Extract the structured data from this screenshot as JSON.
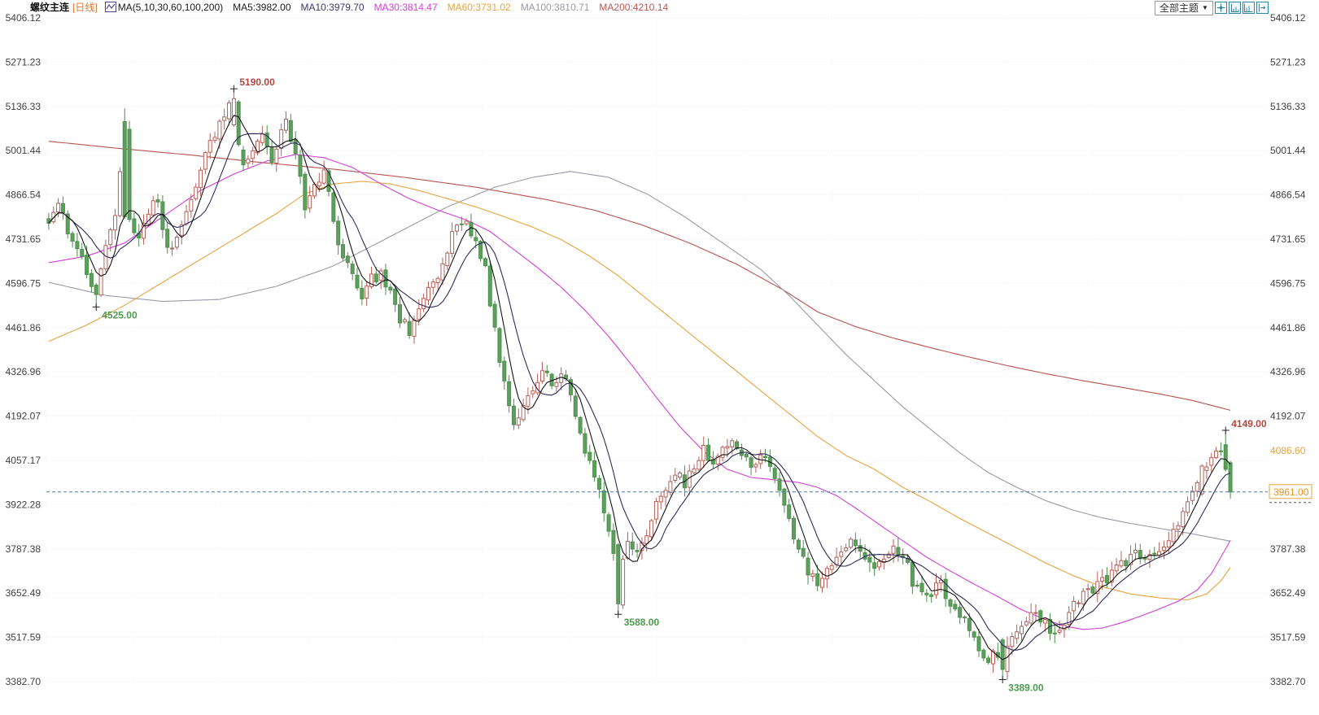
{
  "header": {
    "instrument": "螺纹主连",
    "period": "[日线]",
    "ma_group_label": "MA(5,10,30,60,100,200)",
    "legend": [
      {
        "label": "MA5:3982.00",
        "color": "#1a1a1a"
      },
      {
        "label": "MA10:3979.70",
        "color": "#3a3a6e"
      },
      {
        "label": "MA30:3814.47",
        "color": "#d43fd4"
      },
      {
        "label": "MA60:3731.02",
        "color": "#e8a33d"
      },
      {
        "label": "MA100:3810.71",
        "color": "#9a9aa6"
      },
      {
        "label": "MA200:4210.14",
        "color": "#bf5450"
      }
    ]
  },
  "toolbar": {
    "theme_dropdown_label": "全部主题",
    "dropdown_arrow": "▼",
    "icons": [
      "crosshair-move-icon",
      "y-scale-icon",
      "x-scale-icon",
      "pan-right-icon"
    ]
  },
  "chart_data": {
    "type": "candlestick",
    "instrument": "螺纹主连",
    "period": "日线",
    "y_ticks": [
      5406.12,
      5271.23,
      5136.33,
      5001.44,
      4866.54,
      4731.65,
      4596.75,
      4461.86,
      4326.96,
      4192.07,
      4057.17,
      3922.28,
      3787.38,
      3652.49,
      3517.59,
      3382.7
    ],
    "right_axis_hidden_ticks": [
      4057.17,
      3922.28
    ],
    "extra_right_label": {
      "text": "4086.60",
      "price": 4086.6,
      "color": "#e8a33d"
    },
    "current_price": {
      "text": "3961.00",
      "price": 3961.0,
      "line_color": "#4779b8",
      "label_color": "#e8932c"
    },
    "annotations": [
      {
        "text": "5190.00",
        "price": 5190,
        "candle": 39,
        "color": "#b5453e",
        "placement": "above"
      },
      {
        "text": "4525.00",
        "price": 4525,
        "candle": 10,
        "color": "#4f9a4f",
        "placement": "below"
      },
      {
        "text": "4149.00",
        "price": 4149,
        "candle": 248,
        "color": "#b5453e",
        "placement": "above"
      },
      {
        "text": "3588.00",
        "price": 3588,
        "candle": 120,
        "color": "#4f9a4f",
        "placement": "below"
      },
      {
        "text": "3389.00",
        "price": 3389,
        "candle": 201,
        "color": "#4f9a4f",
        "placement": "below"
      }
    ],
    "candle_count": 250,
    "colors": {
      "up_stroke": "#b5605a",
      "up_fill": "#ffffff",
      "down_fill": "#5ba05b",
      "down_stroke": "#4e8e4e",
      "grid": "#e7e7ee",
      "grid_vertical": "#f0f0f5",
      "axis_text": "#3f3f3f",
      "marker": "#222222",
      "ma5": "#141414",
      "ma10": "#2b2b5e"
    },
    "price_path": [
      [
        0,
        4780
      ],
      [
        2,
        4840
      ],
      [
        4,
        4760
      ],
      [
        6,
        4700
      ],
      [
        8,
        4640
      ],
      [
        10,
        4560
      ],
      [
        12,
        4700
      ],
      [
        14,
        4820
      ],
      [
        16,
        5060
      ],
      [
        17,
        4790
      ],
      [
        19,
        4740
      ],
      [
        21,
        4810
      ],
      [
        23,
        4860
      ],
      [
        25,
        4690
      ],
      [
        27,
        4720
      ],
      [
        29,
        4820
      ],
      [
        31,
        4900
      ],
      [
        33,
        4980
      ],
      [
        35,
        5060
      ],
      [
        37,
        5100
      ],
      [
        39,
        5160
      ],
      [
        40,
        5020
      ],
      [
        41,
        4950
      ],
      [
        43,
        5010
      ],
      [
        45,
        5040
      ],
      [
        47,
        4980
      ],
      [
        49,
        5060
      ],
      [
        50,
        5090
      ],
      [
        52,
        4990
      ],
      [
        54,
        4830
      ],
      [
        56,
        4900
      ],
      [
        58,
        4940
      ],
      [
        60,
        4790
      ],
      [
        61,
        4700
      ],
      [
        63,
        4660
      ],
      [
        65,
        4600
      ],
      [
        66,
        4560
      ],
      [
        68,
        4610
      ],
      [
        70,
        4620
      ],
      [
        72,
        4560
      ],
      [
        74,
        4490
      ],
      [
        76,
        4450
      ],
      [
        78,
        4510
      ],
      [
        80,
        4570
      ],
      [
        82,
        4620
      ],
      [
        84,
        4700
      ],
      [
        86,
        4780
      ],
      [
        88,
        4770
      ],
      [
        90,
        4740
      ],
      [
        92,
        4640
      ],
      [
        94,
        4450
      ],
      [
        96,
        4290
      ],
      [
        98,
        4160
      ],
      [
        100,
        4220
      ],
      [
        102,
        4280
      ],
      [
        104,
        4330
      ],
      [
        106,
        4290
      ],
      [
        108,
        4330
      ],
      [
        110,
        4250
      ],
      [
        112,
        4150
      ],
      [
        114,
        4040
      ],
      [
        116,
        3960
      ],
      [
        118,
        3850
      ],
      [
        119,
        3790
      ],
      [
        120,
        3620
      ],
      [
        121,
        3750
      ],
      [
        122,
        3810
      ],
      [
        124,
        3780
      ],
      [
        126,
        3840
      ],
      [
        128,
        3920
      ],
      [
        130,
        3980
      ],
      [
        132,
        4030
      ],
      [
        134,
        3990
      ],
      [
        136,
        4040
      ],
      [
        138,
        4090
      ],
      [
        140,
        4050
      ],
      [
        142,
        4080
      ],
      [
        144,
        4120
      ],
      [
        146,
        4070
      ],
      [
        148,
        4040
      ],
      [
        150,
        4070
      ],
      [
        152,
        4030
      ],
      [
        154,
        3960
      ],
      [
        156,
        3870
      ],
      [
        158,
        3790
      ],
      [
        160,
        3720
      ],
      [
        162,
        3690
      ],
      [
        164,
        3710
      ],
      [
        166,
        3760
      ],
      [
        168,
        3790
      ],
      [
        170,
        3810
      ],
      [
        172,
        3760
      ],
      [
        174,
        3730
      ],
      [
        176,
        3750
      ],
      [
        178,
        3790
      ],
      [
        180,
        3770
      ],
      [
        182,
        3690
      ],
      [
        184,
        3650
      ],
      [
        186,
        3660
      ],
      [
        188,
        3680
      ],
      [
        190,
        3620
      ],
      [
        192,
        3580
      ],
      [
        194,
        3550
      ],
      [
        196,
        3490
      ],
      [
        198,
        3450
      ],
      [
        200,
        3470
      ],
      [
        201,
        3420
      ],
      [
        202,
        3480
      ],
      [
        203,
        3530
      ],
      [
        205,
        3560
      ],
      [
        207,
        3600
      ],
      [
        209,
        3580
      ],
      [
        211,
        3530
      ],
      [
        213,
        3540
      ],
      [
        215,
        3590
      ],
      [
        217,
        3640
      ],
      [
        219,
        3660
      ],
      [
        221,
        3680
      ],
      [
        223,
        3700
      ],
      [
        225,
        3730
      ],
      [
        227,
        3750
      ],
      [
        229,
        3770
      ],
      [
        231,
        3750
      ],
      [
        233,
        3780
      ],
      [
        235,
        3800
      ],
      [
        237,
        3840
      ],
      [
        239,
        3900
      ],
      [
        241,
        3950
      ],
      [
        243,
        4040
      ],
      [
        245,
        4050
      ],
      [
        246,
        4070
      ],
      [
        247,
        4080
      ],
      [
        248,
        4040
      ],
      [
        249,
        3961
      ]
    ],
    "key_candles": {
      "10": {
        "low": 4525
      },
      "16": {
        "open": 5090,
        "close": 4800,
        "high": 5130
      },
      "39": {
        "open": 5080,
        "close": 5160,
        "high": 5190
      },
      "40": {
        "open": 5150,
        "close": 5020
      },
      "120": {
        "open": 3800,
        "close": 3620,
        "low": 3588
      },
      "201": {
        "open": 3510,
        "close": 3420,
        "low": 3389
      },
      "243": {
        "open": 3955,
        "close": 4040
      },
      "248": {
        "open": 4105,
        "close": 4030,
        "high": 4149
      },
      "249": {
        "open": 4050,
        "close": 3961,
        "low": 3940
      }
    },
    "ma_overlays": [
      {
        "name": "MA30",
        "color": "#d43fd4",
        "points": [
          [
            0,
            4660
          ],
          [
            8,
            4680
          ],
          [
            16,
            4720
          ],
          [
            24,
            4800
          ],
          [
            32,
            4880
          ],
          [
            39,
            4930
          ],
          [
            46,
            4970
          ],
          [
            52,
            4990
          ],
          [
            58,
            4980
          ],
          [
            64,
            4950
          ],
          [
            70,
            4900
          ],
          [
            76,
            4855
          ],
          [
            82,
            4820
          ],
          [
            88,
            4790
          ],
          [
            93,
            4755
          ],
          [
            98,
            4700
          ],
          [
            103,
            4645
          ],
          [
            108,
            4585
          ],
          [
            113,
            4515
          ],
          [
            118,
            4435
          ],
          [
            123,
            4345
          ],
          [
            128,
            4250
          ],
          [
            133,
            4160
          ],
          [
            138,
            4085
          ],
          [
            143,
            4030
          ],
          [
            148,
            4005
          ],
          [
            153,
            3998
          ],
          [
            158,
            3990
          ],
          [
            162,
            3975
          ],
          [
            166,
            3950
          ],
          [
            170,
            3912
          ],
          [
            175,
            3862
          ],
          [
            180,
            3812
          ],
          [
            185,
            3762
          ],
          [
            190,
            3720
          ],
          [
            195,
            3680
          ],
          [
            200,
            3642
          ],
          [
            205,
            3602
          ],
          [
            210,
            3572
          ],
          [
            214,
            3552
          ],
          [
            218,
            3542
          ],
          [
            222,
            3546
          ],
          [
            226,
            3562
          ],
          [
            230,
            3582
          ],
          [
            234,
            3604
          ],
          [
            238,
            3628
          ],
          [
            242,
            3662
          ],
          [
            245,
            3712
          ],
          [
            247,
            3762
          ],
          [
            249,
            3814
          ]
        ]
      },
      {
        "name": "MA60",
        "color": "#e8a33d",
        "points": [
          [
            0,
            4420
          ],
          [
            8,
            4470
          ],
          [
            16,
            4530
          ],
          [
            24,
            4600
          ],
          [
            32,
            4670
          ],
          [
            40,
            4740
          ],
          [
            48,
            4810
          ],
          [
            54,
            4870
          ],
          [
            60,
            4900
          ],
          [
            66,
            4908
          ],
          [
            72,
            4900
          ],
          [
            78,
            4880
          ],
          [
            84,
            4855
          ],
          [
            90,
            4830
          ],
          [
            96,
            4800
          ],
          [
            102,
            4768
          ],
          [
            108,
            4730
          ],
          [
            114,
            4680
          ],
          [
            120,
            4620
          ],
          [
            126,
            4550
          ],
          [
            132,
            4480
          ],
          [
            138,
            4410
          ],
          [
            144,
            4340
          ],
          [
            150,
            4270
          ],
          [
            156,
            4200
          ],
          [
            162,
            4130
          ],
          [
            168,
            4072
          ],
          [
            174,
            4030
          ],
          [
            180,
            3975
          ],
          [
            186,
            3930
          ],
          [
            192,
            3880
          ],
          [
            198,
            3835
          ],
          [
            204,
            3790
          ],
          [
            210,
            3745
          ],
          [
            216,
            3705
          ],
          [
            222,
            3672
          ],
          [
            228,
            3650
          ],
          [
            234,
            3638
          ],
          [
            240,
            3632
          ],
          [
            244,
            3650
          ],
          [
            247,
            3690
          ],
          [
            249,
            3731
          ]
        ]
      },
      {
        "name": "MA100",
        "color": "#9a9aa6",
        "points": [
          [
            0,
            4600
          ],
          [
            12,
            4560
          ],
          [
            24,
            4542
          ],
          [
            36,
            4548
          ],
          [
            48,
            4588
          ],
          [
            60,
            4650
          ],
          [
            72,
            4740
          ],
          [
            84,
            4830
          ],
          [
            94,
            4890
          ],
          [
            102,
            4920
          ],
          [
            110,
            4938
          ],
          [
            118,
            4920
          ],
          [
            126,
            4870
          ],
          [
            134,
            4800
          ],
          [
            142,
            4720
          ],
          [
            150,
            4640
          ],
          [
            156,
            4560
          ],
          [
            162,
            4470
          ],
          [
            168,
            4380
          ],
          [
            174,
            4300
          ],
          [
            180,
            4220
          ],
          [
            186,
            4150
          ],
          [
            192,
            4080
          ],
          [
            198,
            4020
          ],
          [
            204,
            3975
          ],
          [
            210,
            3935
          ],
          [
            216,
            3905
          ],
          [
            222,
            3882
          ],
          [
            228,
            3865
          ],
          [
            234,
            3850
          ],
          [
            240,
            3836
          ],
          [
            245,
            3822
          ],
          [
            249,
            3811
          ]
        ]
      },
      {
        "name": "MA200",
        "color": "#b5534f",
        "points": [
          [
            0,
            5030
          ],
          [
            15,
            5008
          ],
          [
            30,
            4988
          ],
          [
            45,
            4965
          ],
          [
            60,
            4945
          ],
          [
            75,
            4920
          ],
          [
            90,
            4890
          ],
          [
            105,
            4852
          ],
          [
            115,
            4820
          ],
          [
            125,
            4775
          ],
          [
            135,
            4720
          ],
          [
            145,
            4655
          ],
          [
            155,
            4575
          ],
          [
            162,
            4510
          ],
          [
            170,
            4465
          ],
          [
            178,
            4430
          ],
          [
            186,
            4400
          ],
          [
            194,
            4372
          ],
          [
            202,
            4346
          ],
          [
            210,
            4322
          ],
          [
            218,
            4300
          ],
          [
            226,
            4280
          ],
          [
            234,
            4260
          ],
          [
            241,
            4240
          ],
          [
            249,
            4210
          ]
        ]
      }
    ]
  }
}
